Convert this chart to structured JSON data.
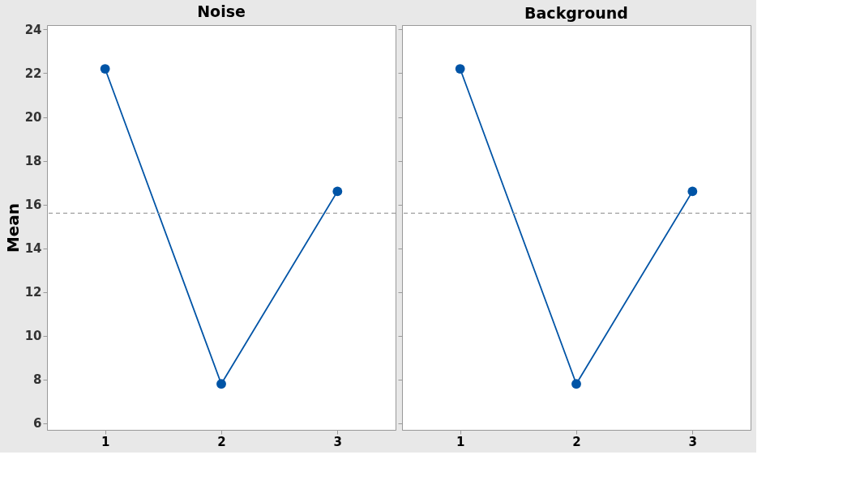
{
  "chart_data": [
    {
      "type": "line",
      "title": "Noise",
      "ylabel": "Mean",
      "categories": [
        "1",
        "2",
        "3"
      ],
      "series": [
        {
          "color": "#0054a6",
          "values": [
            22.2,
            7.8,
            16.6
          ]
        }
      ],
      "ylim": [
        5.7,
        24.2
      ],
      "yticks": [
        6,
        8,
        10,
        12,
        14,
        16,
        18,
        20,
        22,
        24
      ],
      "ref_lines": [
        {
          "axis": "y",
          "value": 15.6,
          "color": "#a0a0a0",
          "line_style": "dashed"
        }
      ],
      "marker": "circle",
      "line_style": "solid",
      "grid": false,
      "legend": false
    },
    {
      "type": "line",
      "title": "Background",
      "categories": [
        "1",
        "2",
        "3"
      ],
      "series": [
        {
          "color": "#0054a6",
          "values": [
            22.2,
            7.8,
            16.6
          ]
        }
      ],
      "ylim": [
        5.7,
        24.2
      ],
      "yticks": [
        6,
        8,
        10,
        12,
        14,
        16,
        18,
        20,
        22,
        24
      ],
      "ref_lines": [
        {
          "axis": "y",
          "value": 15.6,
          "color": "#a0a0a0",
          "line_style": "dashed"
        }
      ],
      "marker": "circle",
      "line_style": "solid",
      "grid": false,
      "legend": false,
      "tick_labels": "x"
    }
  ]
}
